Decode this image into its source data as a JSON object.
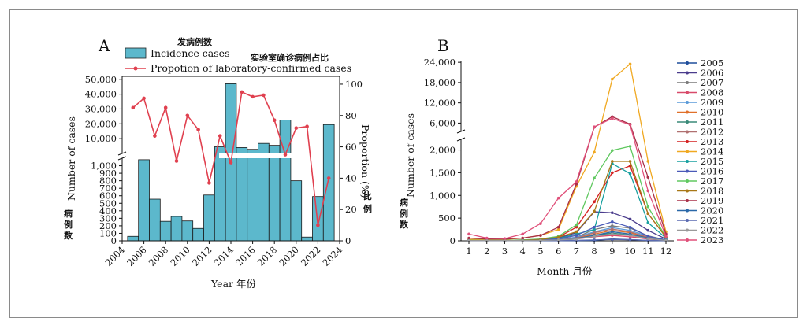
{
  "chart_data": [
    {
      "panel": "A",
      "type": "bar+line",
      "legend_cn_bar": "发病例数",
      "legend_cn_line": "实验室确诊病例占比",
      "bar_series_name": "Incidence cases",
      "line_series_name": "Propotion of laboratory-confirmed cases",
      "ylabel_left": "Number of cases",
      "ylabel_left_cn": "病例数",
      "ylabel_right": "Proportion (%)",
      "ylabel_right_cn": "比例",
      "xlabel": "Year 年份",
      "x_ticks": [
        "2004",
        "2006",
        "2008",
        "2010",
        "2012",
        "2014",
        "2016",
        "2018",
        "2020",
        "2022",
        "2024"
      ],
      "y_lower_ticks": [
        "0",
        "100",
        "200",
        "300",
        "400",
        "500",
        "600",
        "700",
        "800",
        "900",
        "1,000"
      ],
      "y_upper_ticks": [
        "10,000",
        "20,000",
        "30,000",
        "40,000",
        "50,000"
      ],
      "y_right_ticks": [
        "0",
        "20",
        "40",
        "60",
        "80",
        "100"
      ],
      "years": [
        2005,
        2006,
        2007,
        2008,
        2009,
        2010,
        2011,
        2012,
        2013,
        2014,
        2015,
        2016,
        2017,
        2018,
        2019,
        2020,
        2021,
        2022,
        2023
      ],
      "incidence": [
        60,
        1080,
        555,
        260,
        325,
        265,
        165,
        610,
        4500,
        47000,
        4000,
        2800,
        6800,
        5500,
        22500,
        800,
        50,
        590,
        19500
      ],
      "proportion": [
        85,
        91,
        67,
        85,
        51,
        80,
        71,
        37,
        67,
        50,
        95,
        92,
        93,
        77,
        55,
        72,
        73,
        10,
        40
      ],
      "ylim_lower": [
        0,
        1100
      ],
      "ylim_upper": [
        0,
        52000
      ],
      "ylim_right": [
        0,
        105
      ]
    },
    {
      "panel": "B",
      "type": "line",
      "xlabel": "Month 月份",
      "ylabel": "Number of cases",
      "ylabel_cn": "病例数",
      "months": [
        1,
        2,
        3,
        4,
        5,
        6,
        7,
        8,
        9,
        10,
        11,
        12
      ],
      "x_ticks": [
        "1",
        "2",
        "3",
        "4",
        "5",
        "6",
        "7",
        "8",
        "9",
        "10",
        "11",
        "12"
      ],
      "y_lower_ticks": [
        "0",
        "500",
        "1,000",
        "1,500",
        "2,000"
      ],
      "y_upper_ticks": [
        "6,000",
        "12,000",
        "18,000",
        "24,000"
      ],
      "ylim_lower": [
        0,
        2200
      ],
      "ylim_upper": [
        4000,
        24500
      ],
      "series": [
        {
          "name": "2005",
          "color": "#1f4e9c",
          "values": [
            5,
            5,
            5,
            5,
            5,
            5,
            5,
            10,
            40,
            25,
            8,
            5
          ]
        },
        {
          "name": "2006",
          "color": "#4a3c8c",
          "values": [
            20,
            10,
            10,
            20,
            30,
            60,
            180,
            640,
            620,
            480,
            230,
            40
          ]
        },
        {
          "name": "2007",
          "color": "#7a7a7a",
          "values": [
            5,
            5,
            5,
            10,
            15,
            30,
            80,
            250,
            330,
            280,
            110,
            20
          ]
        },
        {
          "name": "2008",
          "color": "#d84a6a",
          "values": [
            5,
            5,
            5,
            5,
            10,
            20,
            40,
            90,
            120,
            90,
            40,
            10
          ]
        },
        {
          "name": "2009",
          "color": "#5a9ad8",
          "values": [
            5,
            5,
            5,
            5,
            10,
            30,
            80,
            200,
            290,
            230,
            100,
            20
          ]
        },
        {
          "name": "2010",
          "color": "#e0702a",
          "values": [
            5,
            5,
            5,
            5,
            10,
            20,
            50,
            150,
            230,
            180,
            70,
            15
          ]
        },
        {
          "name": "2011",
          "color": "#3a8a78",
          "values": [
            5,
            5,
            5,
            5,
            5,
            15,
            40,
            120,
            170,
            130,
            50,
            10
          ]
        },
        {
          "name": "2012",
          "color": "#b07070",
          "values": [
            5,
            5,
            5,
            5,
            10,
            20,
            60,
            180,
            260,
            200,
            80,
            15
          ]
        },
        {
          "name": "2013",
          "color": "#d42020",
          "values": [
            5,
            5,
            5,
            10,
            30,
            80,
            300,
            860,
            1500,
            1650,
            600,
            80
          ]
        },
        {
          "name": "2014",
          "color": "#f0a820",
          "values": [
            30,
            30,
            30,
            60,
            120,
            250,
            1200,
            1950,
            19000,
            23500,
            1750,
            200
          ]
        },
        {
          "name": "2015",
          "color": "#18a0a0",
          "values": [
            5,
            5,
            5,
            10,
            20,
            50,
            150,
            250,
            1700,
            1480,
            400,
            60
          ]
        },
        {
          "name": "2016",
          "color": "#4a5ab8",
          "values": [
            5,
            5,
            5,
            10,
            20,
            40,
            120,
            300,
            420,
            300,
            100,
            20
          ]
        },
        {
          "name": "2017",
          "color": "#60c860",
          "values": [
            10,
            10,
            10,
            20,
            40,
            100,
            350,
            1380,
            1990,
            2080,
            750,
            80
          ]
        },
        {
          "name": "2018",
          "color": "#a87818",
          "values": [
            5,
            5,
            5,
            10,
            30,
            80,
            200,
            650,
            1750,
            1750,
            600,
            80
          ]
        },
        {
          "name": "2019",
          "color": "#a83048",
          "values": [
            60,
            40,
            40,
            60,
            120,
            300,
            1250,
            4800,
            7900,
            5700,
            1400,
            150
          ]
        },
        {
          "name": "2020",
          "color": "#2a68a8",
          "values": [
            5,
            5,
            5,
            5,
            10,
            20,
            50,
            120,
            200,
            150,
            60,
            10
          ]
        },
        {
          "name": "2021",
          "color": "#5a6ab0",
          "values": [
            5,
            5,
            5,
            5,
            5,
            5,
            10,
            20,
            30,
            25,
            10,
            5
          ]
        },
        {
          "name": "2022",
          "color": "#9a9a9a",
          "values": [
            5,
            5,
            5,
            5,
            10,
            20,
            40,
            100,
            150,
            120,
            50,
            10
          ]
        },
        {
          "name": "2023",
          "color": "#e0507a",
          "values": [
            150,
            60,
            50,
            150,
            380,
            940,
            1300,
            4900,
            7400,
            5500,
            1100,
            100
          ]
        }
      ]
    }
  ]
}
